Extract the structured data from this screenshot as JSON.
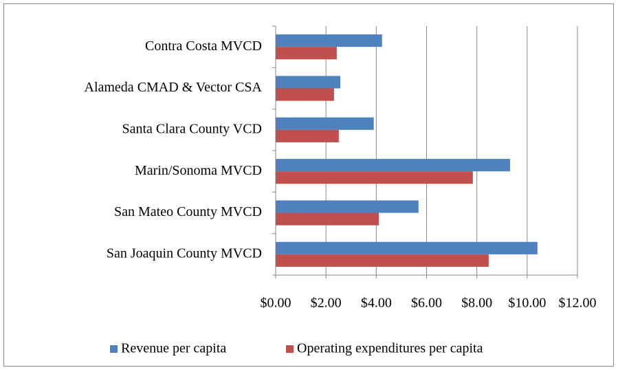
{
  "chart_data": {
    "type": "bar",
    "orientation": "horizontal",
    "categories": [
      "Contra Costa MVCD",
      "Alameda CMAD & Vector CSA",
      "Santa Clara County VCD",
      "Marin/Sonoma MVCD",
      "San Mateo County MVCD",
      "San Joaquin County MVCD"
    ],
    "series": [
      {
        "name": "Revenue per capita",
        "color": "#4f81bd",
        "values": [
          4.23,
          2.57,
          3.9,
          9.32,
          5.68,
          10.41
        ]
      },
      {
        "name": "Operating expenditures per capita",
        "color": "#c0504d",
        "values": [
          2.43,
          2.32,
          2.51,
          7.84,
          4.1,
          8.47
        ]
      }
    ],
    "xlim": [
      0,
      12
    ],
    "xticks": [
      {
        "value": 0,
        "label": "$0.00"
      },
      {
        "value": 2,
        "label": "$2.00"
      },
      {
        "value": 4,
        "label": "$4.00"
      },
      {
        "value": 6,
        "label": "$6.00"
      },
      {
        "value": 8,
        "label": "$8.00"
      },
      {
        "value": 10,
        "label": "$10.00"
      },
      {
        "value": 12,
        "label": "$12.00"
      }
    ],
    "grid": true,
    "legend": "bottom"
  }
}
